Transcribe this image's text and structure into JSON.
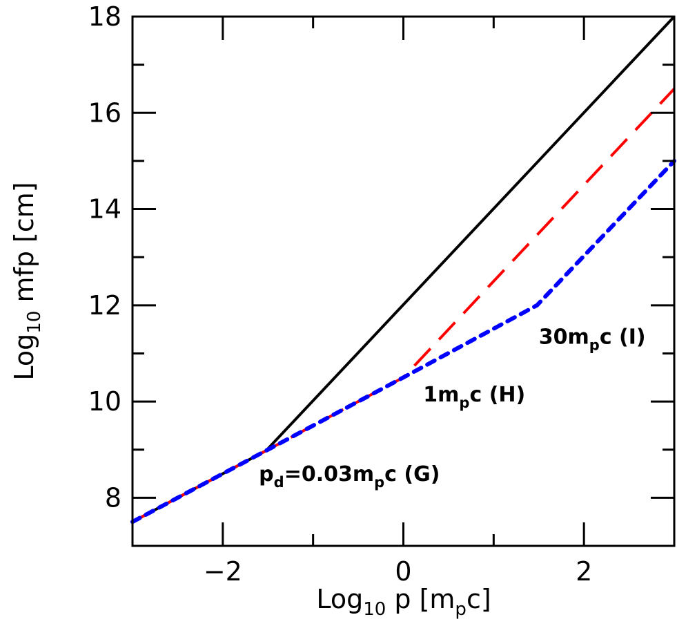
{
  "chart_data": {
    "type": "line",
    "xlabel": {
      "main": "Log",
      "sub": "10",
      "rest": " p [m",
      "sub2": "p",
      "end": "c]"
    },
    "ylabel": {
      "main": "Log",
      "sub": "10",
      "rest": " mfp [cm]"
    },
    "xlim": [
      -3,
      3
    ],
    "ylim": [
      7,
      18
    ],
    "xticks_major": [
      -2,
      0,
      2
    ],
    "xtick_labels": [
      "−2",
      "0",
      "2"
    ],
    "xticks_minor": [
      -3,
      -1,
      1,
      3
    ],
    "yticks_major": [
      8,
      10,
      12,
      14,
      16,
      18
    ],
    "ytick_labels": [
      "8",
      "10",
      "12",
      "14",
      "16",
      "18"
    ],
    "yticks_minor": [
      7,
      9,
      11,
      13,
      15,
      17
    ],
    "grid": false,
    "series": [
      {
        "style": "solid",
        "color": "#000000",
        "points": [
          [
            -3,
            7.5
          ],
          [
            -1.52,
            8.98
          ],
          [
            3,
            18
          ]
        ]
      },
      {
        "style": "dashed",
        "color": "#ff0000",
        "points": [
          [
            -3,
            7.5
          ],
          [
            0,
            10.5
          ],
          [
            3,
            16.5
          ]
        ]
      },
      {
        "style": "dotted",
        "color": "#0000ff",
        "points": [
          [
            -3,
            7.5
          ],
          [
            0,
            10.5
          ],
          [
            1.48,
            12
          ],
          [
            3,
            15
          ]
        ]
      }
    ],
    "annotations": [
      {
        "parts": [
          [
            "p",
            ""
          ],
          [
            "d",
            "sub"
          ],
          [
            "=0.03m",
            ""
          ],
          [
            "p",
            "sub"
          ],
          [
            "c (G)",
            ""
          ]
        ],
        "x": -1.6,
        "y": 8.35
      },
      {
        "parts": [
          [
            "1m",
            ""
          ],
          [
            "p",
            "sub"
          ],
          [
            "c (H)",
            ""
          ]
        ],
        "x": 0.22,
        "y": 10.0
      },
      {
        "parts": [
          [
            "30m",
            ""
          ],
          [
            "p",
            "sub"
          ],
          [
            "c (I)",
            ""
          ]
        ],
        "x": 1.5,
        "y": 11.2
      }
    ]
  }
}
